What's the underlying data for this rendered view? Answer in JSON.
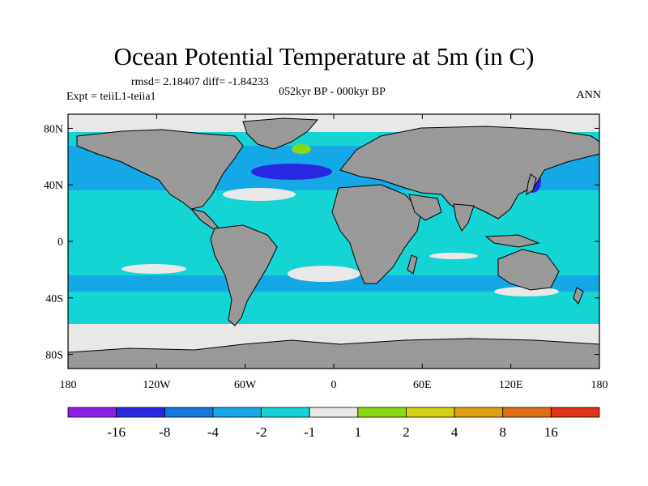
{
  "title": "Ocean Potential Temperature at 5m (in C)",
  "stats_line": "rmsd= 2.18407 diff= -1.84233",
  "experiment_line": "Expt = teiiL1-teiia1",
  "period_line": "052kyr BP - 000kyr BP",
  "season_label": "ANN",
  "map": {
    "lon_range": [
      -180,
      180
    ],
    "lat_range": [
      -90,
      90
    ],
    "x_ticks": [
      {
        "lon": -180,
        "label": "180"
      },
      {
        "lon": -120,
        "label": "120W"
      },
      {
        "lon": -60,
        "label": "60W"
      },
      {
        "lon": 0,
        "label": "0"
      },
      {
        "lon": 60,
        "label": "60E"
      },
      {
        "lon": 120,
        "label": "120E"
      },
      {
        "lon": 180,
        "label": "180"
      }
    ],
    "y_ticks": [
      {
        "lat": 80,
        "label": "80N"
      },
      {
        "lat": 40,
        "label": "40N"
      },
      {
        "lat": 0,
        "label": "0"
      },
      {
        "lat": -40,
        "label": "40S"
      },
      {
        "lat": -80,
        "label": "80S"
      }
    ],
    "colors": {
      "land": "#999999",
      "ocean_default": "#14d4d4",
      "neutral": "#e8e8e8",
      "coastline": "#000000"
    }
  },
  "colorbar": {
    "bins": [
      {
        "color": "#8c1ee8"
      },
      {
        "color": "#2828e0"
      },
      {
        "color": "#1478dc"
      },
      {
        "color": "#14a8e6"
      },
      {
        "color": "#14d4d4"
      },
      {
        "color": "#e8e8e8"
      },
      {
        "color": "#8ad814"
      },
      {
        "color": "#d8d014"
      },
      {
        "color": "#e0a014"
      },
      {
        "color": "#e06e14"
      },
      {
        "color": "#e03214"
      }
    ],
    "boundary_labels": [
      "-16",
      "-8",
      "-4",
      "-2",
      "-1",
      "1",
      "2",
      "4",
      "8",
      "16"
    ]
  }
}
